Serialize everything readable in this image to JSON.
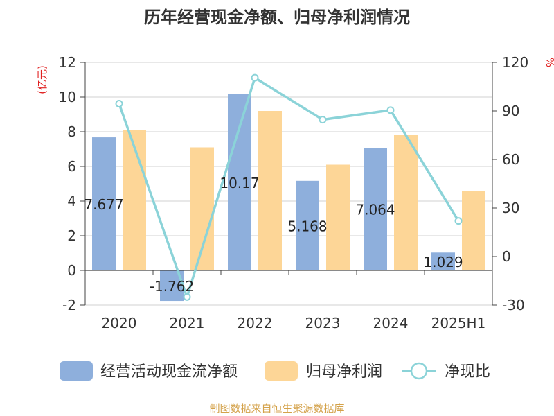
{
  "chart_data": {
    "type": "bar",
    "title": "历年经营现金净额、归母净利润情况",
    "y_left_unit": "(亿元)",
    "y_right_unit": "%",
    "categories": [
      "2020",
      "2021",
      "2022",
      "2023",
      "2024",
      "2025H1"
    ],
    "ylim_left": [
      -2,
      12
    ],
    "yticks_left": [
      "-2",
      "0",
      "2",
      "4",
      "6",
      "8",
      "10",
      "12"
    ],
    "ylim_right": [
      -30,
      120
    ],
    "yticks_right": [
      "-30",
      "0",
      "30",
      "60",
      "90",
      "120"
    ],
    "series": [
      {
        "name": "经营活动现金流净额",
        "type": "bar",
        "color": "#8eafdc",
        "values": [
          7.677,
          -1.762,
          10.17,
          5.168,
          7.064,
          1.029
        ],
        "labels": [
          "7.677",
          "-1.762",
          "10.17",
          "5.168",
          "7.064",
          "1.029"
        ]
      },
      {
        "name": "归母净利润",
        "type": "bar",
        "color": "#fdd697",
        "values": [
          8.1,
          7.1,
          9.2,
          6.1,
          7.8,
          4.6
        ]
      },
      {
        "name": "净现比",
        "type": "line",
        "axis": "right",
        "color": "#8bd3d8",
        "values": [
          94.5,
          -25,
          110.5,
          84.6,
          90.5,
          22
        ]
      }
    ],
    "grid": true,
    "legend_position": "bottom",
    "source": "制图数据来自恒生聚源数据库"
  }
}
